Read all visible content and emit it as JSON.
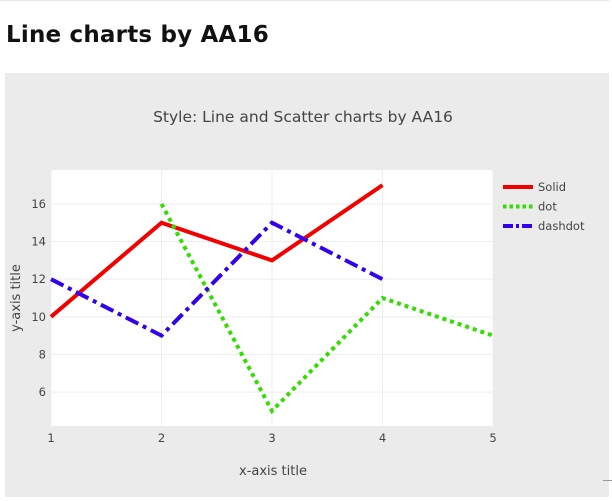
{
  "page": {
    "title": "Line charts by AA16"
  },
  "colors": {
    "card_background": "#ebebeb",
    "plot_background": "#ffffff",
    "grid": "#eeeeee",
    "series_solid": "#f20000",
    "series_dot": "#33dd00",
    "series_dashdot": "#3300ee"
  },
  "chart_data": {
    "type": "line",
    "title": "Style: Line and Scatter charts by AA16",
    "xlabel": "x-axis title",
    "ylabel": "y-axis title",
    "xlim": [
      1,
      5
    ],
    "ylim": [
      4.2,
      17.8
    ],
    "x_ticks": [
      "1",
      "2",
      "3",
      "4",
      "5"
    ],
    "y_ticks": [
      "6",
      "8",
      "10",
      "12",
      "14",
      "16"
    ],
    "grid": true,
    "legend_position": "right",
    "series": [
      {
        "name": "Solid",
        "style": "solid",
        "color": "#f20000",
        "x": [
          1,
          2,
          3,
          4
        ],
        "y": [
          10,
          15,
          13,
          17
        ]
      },
      {
        "name": "dot",
        "style": "dot",
        "color": "#33dd00",
        "x": [
          2,
          3,
          4,
          5
        ],
        "y": [
          16,
          5,
          11,
          9
        ]
      },
      {
        "name": "dashdot",
        "style": "dashdot",
        "color": "#3300ee",
        "x": [
          1,
          2,
          3,
          4
        ],
        "y": [
          12,
          9,
          15,
          12
        ]
      }
    ]
  }
}
